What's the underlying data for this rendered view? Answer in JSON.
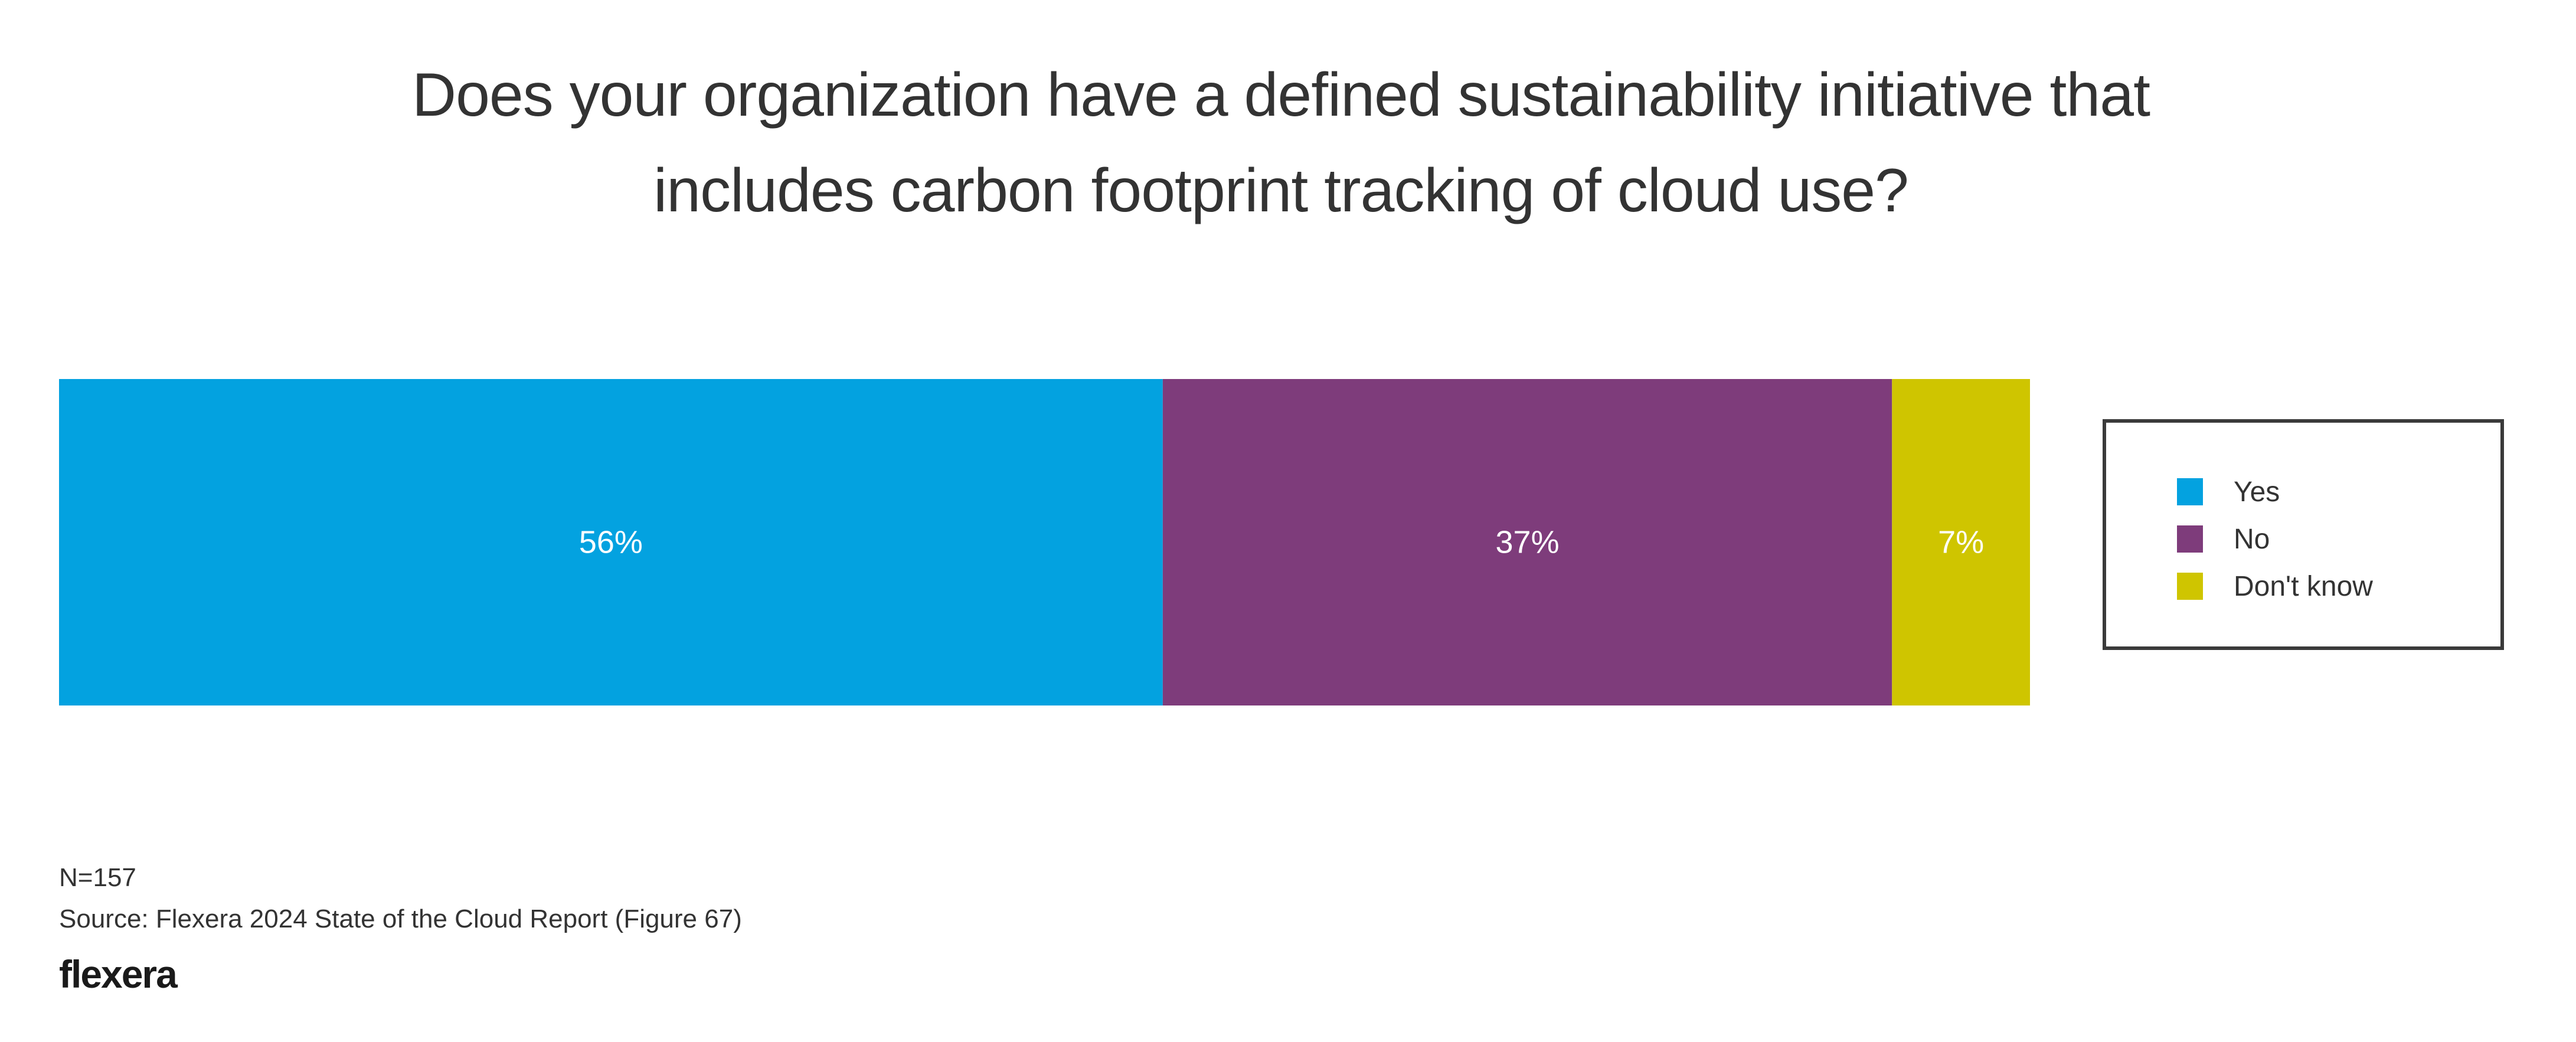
{
  "chart_data": {
    "type": "bar",
    "orientation": "horizontal-stacked",
    "title_lines": [
      "Does your organization have a defined sustainability initiative that",
      "includes carbon footprint tracking of cloud use?"
    ],
    "categories": [
      "Yes",
      "No",
      "Don't know"
    ],
    "values": [
      56,
      37,
      7
    ],
    "value_labels": [
      "56%",
      "37%",
      "7%"
    ],
    "colors": [
      "#03a2e0",
      "#7e3c7b",
      "#cfc500"
    ],
    "xlim": [
      0,
      100
    ],
    "legend": {
      "placement": "right",
      "entries": [
        "Yes",
        "No",
        "Don't know"
      ]
    },
    "grid": false
  },
  "footer": {
    "n": "N=157",
    "source": "Source: Flexera 2024 State of the Cloud Report (Figure 67)",
    "logo": "flexera"
  }
}
